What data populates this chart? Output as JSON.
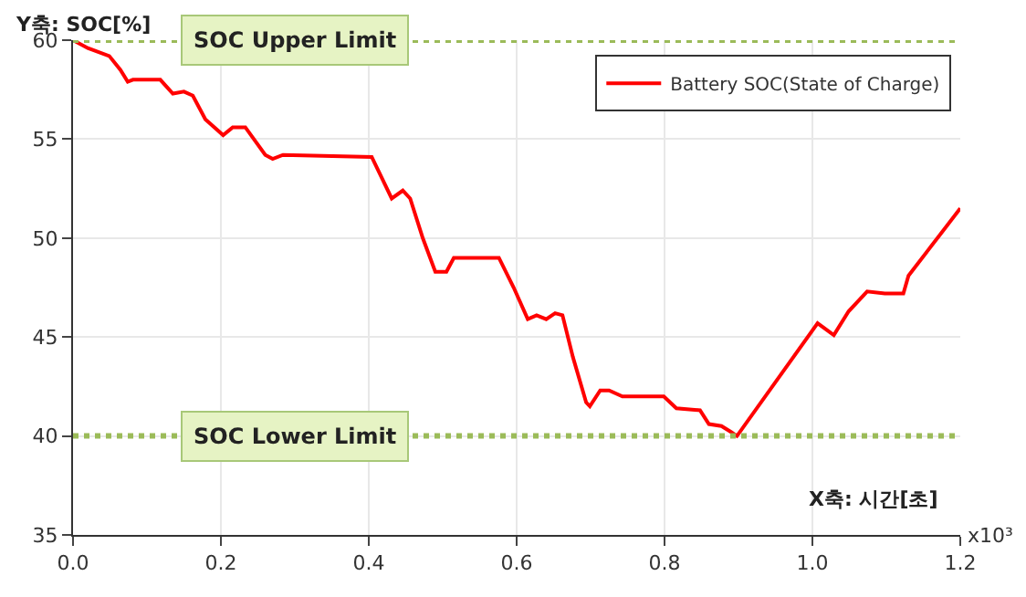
{
  "chart_data": {
    "type": "line",
    "xlabel": "X축: 시간[초]",
    "ylabel": "Y축: SOC[%]",
    "x": [
      0,
      0.02,
      0.049,
      0.064,
      0.074,
      0.081,
      0.118,
      0.135,
      0.15,
      0.162,
      0.179,
      0.203,
      0.216,
      0.233,
      0.26,
      0.27,
      0.284,
      0.404,
      0.431,
      0.446,
      0.456,
      0.473,
      0.49,
      0.505,
      0.515,
      0.576,
      0.596,
      0.615,
      0.627,
      0.64,
      0.652,
      0.662,
      0.676,
      0.694,
      0.699,
      0.713,
      0.725,
      0.743,
      0.799,
      0.816,
      0.848,
      0.86,
      0.877,
      0.89,
      0.898,
      1.007,
      1.029,
      1.049,
      1.074,
      1.098,
      1.123,
      1.13,
      1.2
    ],
    "series": [
      {
        "name": "Battery SOC(State of Charge)",
        "color": "#ff0000",
        "values": [
          60,
          59.6,
          59.2,
          58.5,
          57.9,
          58,
          58,
          57.3,
          57.4,
          57.2,
          56,
          55.2,
          55.6,
          55.6,
          54.2,
          54,
          54.2,
          54.1,
          52,
          52.4,
          52,
          50,
          48.3,
          48.3,
          49,
          49,
          47.5,
          45.9,
          46.1,
          45.9,
          46.2,
          46.1,
          44,
          41.7,
          41.5,
          42.3,
          42.3,
          42,
          42,
          41.4,
          41.3,
          40.6,
          40.5,
          40.2,
          40,
          45.7,
          45.1,
          46.3,
          47.3,
          47.2,
          47.2,
          48.1,
          51.5
        ]
      }
    ],
    "xlim": [
      0,
      1.2
    ],
    "xticks": [
      {
        "value": 0,
        "label": "0.0"
      },
      0.2,
      0.4,
      0.6,
      0.8,
      {
        "value": 1,
        "label": "1.0"
      },
      1.2
    ],
    "ylim": [
      35,
      60
    ],
    "yticks": [
      35,
      40,
      45,
      50,
      55,
      60
    ],
    "ref_lines": [
      {
        "axis": "y",
        "value": 60,
        "label": "SOC Upper Limit",
        "color": "#9bbb59",
        "line_style": "dotted"
      },
      {
        "axis": "y",
        "value": 40,
        "label": "SOC Lower Limit",
        "color": "#9bbb59",
        "line_style": "dotted"
      }
    ],
    "annotations": [
      "x10³"
    ],
    "grid": true,
    "legend": "top right",
    "marker": "none",
    "line_style": "solid"
  }
}
